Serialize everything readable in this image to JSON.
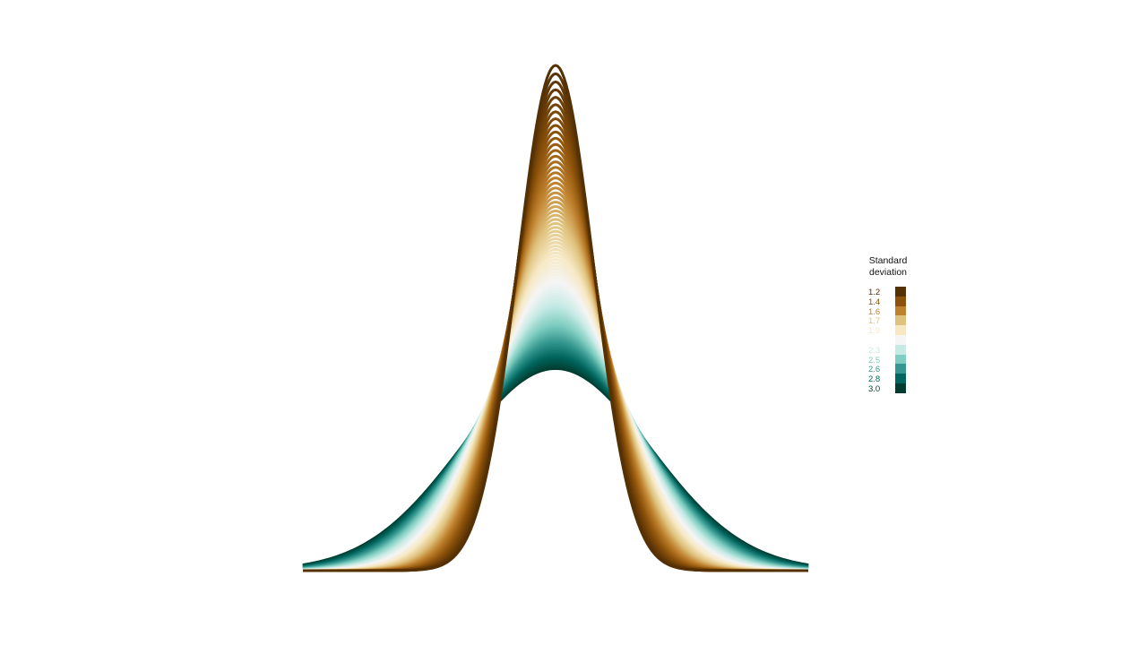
{
  "chart_data": {
    "type": "area",
    "description_kind": "normal density curves for a range of standard deviations",
    "mean": 0,
    "sd_min": 1.2,
    "sd_max": 3.0,
    "x_range": [
      -8,
      8
    ],
    "axes_visible": false,
    "grid": false,
    "legend": {
      "title_line1": "Standard",
      "title_line2": "deviation",
      "placement": "right",
      "entries": [
        {
          "label": "1.2",
          "color": "#543005"
        },
        {
          "label": "1.4",
          "color": "#8C510A"
        },
        {
          "label": "1.6",
          "color": "#BF812D"
        },
        {
          "label": "1.7",
          "color": "#DFC27D"
        },
        {
          "label": "1.9",
          "color": "#F6E8C3"
        },
        {
          "label": "2.1",
          "color": "#F5F5F5"
        },
        {
          "label": "2.3",
          "color": "#C7EAE5"
        },
        {
          "label": "2.5",
          "color": "#80CDC1"
        },
        {
          "label": "2.6",
          "color": "#35978F"
        },
        {
          "label": "2.8",
          "color": "#01665E"
        },
        {
          "label": "3.0",
          "color": "#003C30"
        }
      ]
    }
  }
}
